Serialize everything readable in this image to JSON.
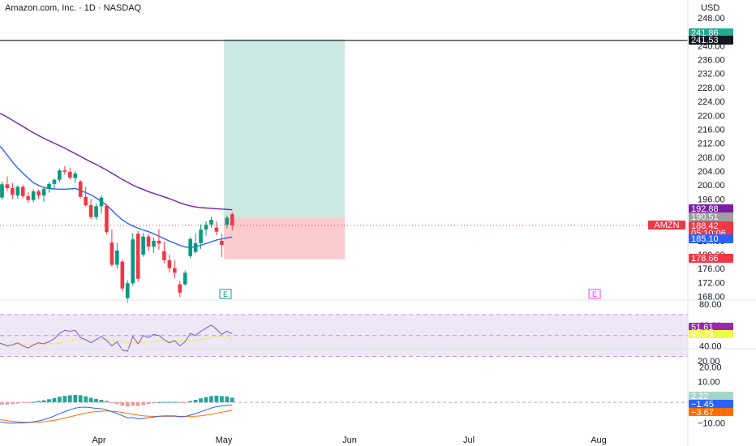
{
  "header": {
    "title": "Amazon.com, Inc. · 1D · NASDAQ"
  },
  "price_axis": {
    "currency": "USD",
    "ticks": [
      "248.00",
      "244.00",
      "240.00",
      "236.00",
      "232.00",
      "228.00",
      "224.00",
      "220.00",
      "216.00",
      "212.00",
      "208.00",
      "204.00",
      "200.00",
      "196.00",
      "192.00",
      "188.00",
      "184.00",
      "180.00",
      "176.00",
      "172.00",
      "168.00"
    ]
  },
  "rsi_axis": {
    "ticks": [
      "80.00",
      "60.00",
      "40.00",
      "20.00"
    ]
  },
  "macd_axis": {
    "ticks": [
      "20.00",
      "10.00",
      "−10.00"
    ]
  },
  "time_axis": {
    "labels": [
      "Apr",
      "May",
      "Jun",
      "Jul",
      "Aug"
    ]
  },
  "symbol_tag": "AMZN",
  "earnings_markers": [
    {
      "label": "E",
      "color": "#089981"
    },
    {
      "label": "E",
      "color": "#e040fb"
    }
  ],
  "price_tags": [
    {
      "text": "241.86",
      "bg": "#22ab94",
      "fg": "#ffffff"
    },
    {
      "text": "241.53",
      "bg": "#131722",
      "fg": "#ffffff"
    },
    {
      "text": "192.88",
      "bg": "#7b1fa2",
      "fg": "#ffffff"
    },
    {
      "text": "190.51",
      "bg": "#9e9e9e",
      "fg": "#ffffff"
    },
    {
      "text": "188.42",
      "bg": "#f23645",
      "fg": "#ffffff"
    },
    {
      "text": "05:10:06",
      "bg": "#f23645",
      "fg": "#ffffff"
    },
    {
      "text": "185.10",
      "bg": "#2962ff",
      "fg": "#ffffff"
    },
    {
      "text": "178.66",
      "bg": "#f23645",
      "fg": "#ffffff"
    }
  ],
  "indicator_tags": [
    {
      "text": "51.61",
      "bg": "#9c27b0",
      "fg": "#ffffff"
    },
    {
      "text": "45.79",
      "bg": "#eeff41",
      "fg": "#131722"
    },
    {
      "text": "2.22",
      "bg": "#a5d6c9",
      "fg": "#131722"
    },
    {
      "text": "−1.45",
      "bg": "#2962ff",
      "fg": "#ffffff"
    },
    {
      "text": "−3.67",
      "bg": "#ff6d00",
      "fg": "#ffffff"
    }
  ],
  "colors": {
    "up": "#089981",
    "down": "#f23645",
    "ma_fast": "#2962ff",
    "ma_slow": "#7b1fa2",
    "rsi": "#7e57c2",
    "rsi_ma": "#f5e663",
    "rsi_band": "#ede7f6",
    "target_zone": "#cde9e4",
    "stop_zone": "#fccbcd",
    "macd_line": "#2962ff",
    "signal_line": "#ff6d00",
    "hist_up": "#26a69a",
    "hist_down": "#ef9a9a",
    "hline": "#131722"
  },
  "chart_data": [
    {
      "type": "candlestick",
      "title": "Amazon.com, Inc. · 1D · NASDAQ",
      "x_labels": [
        "Apr",
        "May",
        "Jun",
        "Jul",
        "Aug"
      ],
      "ylim": [
        166,
        250
      ],
      "series": [
        {
          "name": "AMZN",
          "ohlc": [
            [
              198.5,
              199.8,
              195.2,
              196.4
            ],
            [
              196.4,
              201.0,
              195.8,
              200.2
            ],
            [
              200.2,
              202.5,
              198.3,
              199.1
            ],
            [
              199.1,
              200.6,
              196.0,
              197.2
            ],
            [
              197.0,
              199.9,
              196.1,
              199.5
            ],
            [
              199.5,
              200.1,
              196.2,
              196.8
            ],
            [
              196.8,
              198.0,
              194.8,
              195.7
            ],
            [
              195.7,
              198.8,
              195.0,
              198.2
            ],
            [
              198.2,
              198.7,
              196.0,
              197.0
            ],
            [
              197.0,
              199.5,
              195.2,
              198.9
            ],
            [
              198.9,
              200.9,
              197.8,
              200.3
            ],
            [
              200.3,
              202.0,
              199.0,
              201.5
            ],
            [
              201.5,
              204.6,
              200.8,
              204.2
            ],
            [
              204.2,
              205.4,
              203.0,
              203.8
            ],
            [
              203.8,
              205.0,
              201.5,
              202.1
            ],
            [
              202.0,
              204.0,
              200.6,
              203.3
            ],
            [
              201.0,
              201.4,
              196.2,
              196.6
            ],
            [
              196.6,
              199.5,
              193.8,
              194.2
            ],
            [
              194.2,
              196.0,
              190.2,
              190.8
            ],
            [
              190.8,
              194.7,
              190.0,
              193.9
            ],
            [
              193.9,
              197.0,
              191.8,
              196.4
            ],
            [
              194.0,
              194.4,
              185.9,
              186.5
            ],
            [
              183.5,
              187.2,
              176.6,
              177.1
            ],
            [
              177.1,
              183.4,
              176.0,
              181.2
            ],
            [
              178.0,
              178.6,
              169.5,
              170.3
            ],
            [
              167.5,
              172.6,
              166.2,
              171.8
            ],
            [
              171.8,
              186.2,
              171.0,
              184.4
            ],
            [
              186.0,
              186.8,
              172.3,
              173.1
            ],
            [
              180.0,
              186.2,
              179.4,
              185.2
            ],
            [
              185.2,
              186.0,
              181.0,
              182.3
            ],
            [
              182.3,
              184.9,
              180.5,
              184.0
            ],
            [
              184.0,
              187.3,
              181.4,
              183.2
            ],
            [
              181.0,
              183.7,
              177.6,
              178.4
            ],
            [
              178.4,
              180.0,
              174.9,
              176.1
            ],
            [
              176.1,
              178.5,
              173.2,
              174.8
            ],
            [
              171.5,
              172.4,
              167.8,
              169.1
            ],
            [
              171.5,
              175.5,
              171.0,
              174.8
            ],
            [
              179.6,
              185.1,
              179.0,
              184.5
            ],
            [
              180.8,
              186.2,
              180.3,
              183.3
            ],
            [
              183.3,
              188.7,
              181.6,
              187.2
            ],
            [
              187.2,
              189.6,
              185.5,
              188.6
            ],
            [
              188.6,
              190.9,
              187.8,
              190.0
            ],
            [
              187.8,
              189.5,
              185.6,
              186.6
            ],
            [
              184.0,
              186.1,
              179.3,
              182.8
            ],
            [
              188.6,
              191.2,
              187.6,
              190.6
            ],
            [
              191.6,
              192.2,
              187.0,
              188.4
            ]
          ]
        },
        {
          "name": "MA fast",
          "values": [
            212.0,
            210.5,
            208.6,
            206.6,
            204.9,
            203.4,
            202.0,
            200.7,
            199.9,
            199.3,
            199.0,
            198.9,
            198.8,
            198.8,
            198.9,
            199.0,
            198.5,
            197.8,
            197.2,
            196.3,
            195.3,
            194.2,
            192.8,
            191.3,
            190.0,
            189.0,
            188.2,
            187.6,
            187.1,
            186.6,
            186.0,
            185.3,
            184.6,
            183.9,
            183.3,
            182.7,
            182.2,
            182.1,
            182.3,
            182.7,
            183.2,
            183.7,
            184.2,
            184.5,
            184.8,
            185.1
          ]
        },
        {
          "name": "MA slow",
          "values": [
            221.0,
            220.3,
            219.5,
            218.6,
            217.7,
            216.8,
            215.9,
            215.0,
            214.2,
            213.4,
            212.7,
            212.0,
            211.3,
            210.6,
            209.8,
            209.0,
            208.2,
            207.4,
            206.6,
            205.9,
            205.1,
            204.3,
            203.4,
            202.5,
            201.6,
            200.8,
            200.0,
            199.3,
            198.7,
            198.1,
            197.6,
            197.1,
            196.6,
            196.1,
            195.5,
            194.9,
            194.4,
            194.0,
            193.7,
            193.5,
            193.4,
            193.3,
            193.2,
            193.1,
            193.0,
            192.9
          ]
        },
        {
          "name": "RSI",
          "values": [
            44,
            42,
            40,
            41,
            43,
            40,
            38,
            41,
            43,
            42,
            44,
            47,
            52,
            55,
            54,
            55,
            48,
            46,
            43,
            46,
            49,
            45,
            40,
            44,
            36,
            35,
            49,
            42,
            50,
            48,
            51,
            50,
            46,
            43,
            45,
            40,
            44,
            52,
            50,
            54,
            57,
            60,
            56,
            51,
            54,
            51.6
          ]
        },
        {
          "name": "RSI MA",
          "values": [
            41,
            41,
            41,
            41,
            41,
            41,
            41,
            41,
            41,
            42,
            42,
            42,
            43,
            44,
            45,
            46,
            46,
            46,
            46,
            46,
            46,
            46,
            45,
            45,
            44,
            43,
            43,
            43,
            43,
            44,
            44,
            45,
            45,
            45,
            45,
            45,
            45,
            45,
            45,
            46,
            47,
            48,
            49,
            49,
            50,
            45.8
          ]
        },
        {
          "name": "MACD",
          "values": [
            -9,
            -9.6,
            -10,
            -10.1,
            -10,
            -10,
            -9.8,
            -9.5,
            -9,
            -8.4,
            -7.6,
            -6.6,
            -5.5,
            -4.5,
            -3.6,
            -2.8,
            -2.4,
            -2.3,
            -2.6,
            -2.9,
            -3.1,
            -3.6,
            -4.5,
            -5.4,
            -6.5,
            -7.5,
            -7.4,
            -8,
            -7.8,
            -7.5,
            -7.1,
            -6.7,
            -6.6,
            -6.6,
            -6.6,
            -7,
            -6.9,
            -6.2,
            -5.5,
            -4.6,
            -3.7,
            -2.8,
            -2.1,
            -1.8,
            -1.5,
            -1.45
          ]
        },
        {
          "name": "Signal",
          "values": [
            -8,
            -8.5,
            -8.9,
            -9.2,
            -9.4,
            -9.6,
            -9.7,
            -9.7,
            -9.6,
            -9.4,
            -9.1,
            -8.7,
            -8.2,
            -7.6,
            -7,
            -6.4,
            -5.8,
            -5.2,
            -4.8,
            -4.5,
            -4.3,
            -4.2,
            -4.3,
            -4.5,
            -4.9,
            -5.4,
            -5.8,
            -6.2,
            -6.5,
            -6.7,
            -6.8,
            -6.8,
            -6.8,
            -6.8,
            -6.8,
            -6.8,
            -6.8,
            -6.8,
            -6.7,
            -6.5,
            -6.2,
            -5.8,
            -5.3,
            -4.8,
            -4.3,
            -3.67
          ]
        },
        {
          "name": "Histogram",
          "values": [
            -1,
            -1.1,
            -1.1,
            -0.9,
            -0.6,
            -0.4,
            -0.1,
            0.2,
            0.6,
            1,
            1.5,
            2.1,
            2.7,
            3.1,
            3.4,
            3.6,
            3.4,
            2.9,
            2.2,
            1.6,
            1.2,
            0.6,
            -0.2,
            -0.9,
            -1.6,
            -2.1,
            -1.6,
            -1.8,
            -1.3,
            -0.8,
            -0.3,
            0.1,
            0.2,
            0.2,
            0.2,
            -0.2,
            -0.1,
            0.6,
            1.2,
            1.9,
            2.5,
            3,
            3.2,
            3,
            2.8,
            2.22
          ]
        }
      ],
      "horizontal_line": 241.53,
      "position": {
        "entry": 190.51,
        "target": 241.86,
        "stop": 178.66
      }
    }
  ]
}
